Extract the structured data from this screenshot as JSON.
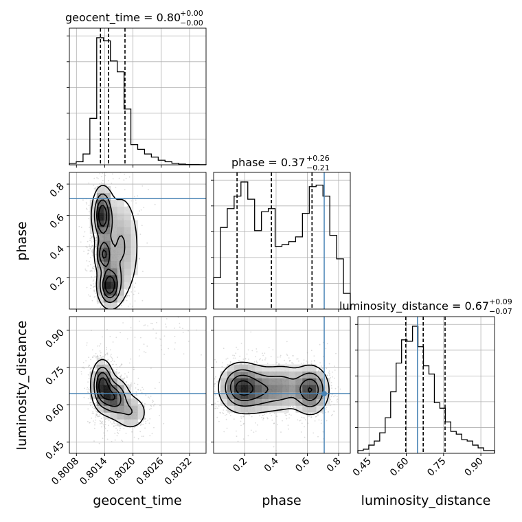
{
  "chart_data": {
    "type": "corner",
    "parameters": [
      {
        "name": "geocent_time",
        "label": "geocent_time",
        "title": "geocent_time = 0.80",
        "title_sup": "+0.00",
        "title_sub": "−0.00",
        "range": [
          0.80065,
          0.80355
        ],
        "ticks": [
          0.8008,
          0.8014,
          0.802,
          0.8026,
          0.8032
        ],
        "tick_labels": [
          "0.8008",
          "0.8014",
          "0.8020",
          "0.8026",
          "0.8032"
        ],
        "quantiles": [
          0.80131,
          0.80148,
          0.80183
        ],
        "truth": null,
        "hist_edges": [
          0.80065,
          0.80355
        ],
        "hist_counts": [
          1,
          2,
          7,
          30,
          82,
          80,
          67,
          60,
          36,
          13,
          10,
          7,
          5,
          3,
          2,
          1,
          0.5,
          0.2,
          0.2,
          0.1
        ]
      },
      {
        "name": "phase",
        "label": "phase",
        "title": "phase = 0.37",
        "title_sup": "+0.26",
        "title_sub": "−0.21",
        "range": [
          0.0,
          0.875
        ],
        "ticks": [
          0.2,
          0.4,
          0.6,
          0.8
        ],
        "tick_labels": [
          "0.2",
          "0.4",
          "0.6",
          "0.8"
        ],
        "quantiles": [
          0.15,
          0.37,
          0.63
        ],
        "truth": 0.708,
        "hist_edges": [
          0.0,
          0.875
        ],
        "hist_counts": [
          20,
          52,
          64,
          72,
          81,
          70,
          50,
          62,
          64,
          40,
          41,
          43,
          46,
          61,
          78,
          79,
          72,
          47,
          32,
          10
        ]
      },
      {
        "name": "luminosity_distance",
        "label": "luminosity_distance",
        "title": "luminosity_distance = 0.67",
        "title_sup": "+0.09",
        "title_sub": "−0.07",
        "range": [
          0.405,
          0.955
        ],
        "ticks": [
          0.45,
          0.6,
          0.75,
          0.9
        ],
        "tick_labels": [
          "0.45",
          "0.60",
          "0.75",
          "0.90"
        ],
        "quantiles": [
          0.598,
          0.668,
          0.756
        ],
        "truth": 0.645,
        "hist_edges": [
          0.405,
          0.955
        ],
        "hist_counts": [
          2,
          3,
          6,
          9,
          15,
          26,
          45,
          66,
          83,
          82,
          93,
          78,
          64,
          58,
          37,
          33,
          23,
          16,
          14,
          10,
          9,
          6,
          4,
          2,
          2
        ]
      }
    ],
    "pairs": [
      {
        "x": "geocent_time",
        "y": "phase",
        "truth_x": null,
        "truth_y": 0.708,
        "density_peaks": [
          {
            "x": 0.80135,
            "y": 0.6,
            "sx": 0.00011,
            "sy": 0.09,
            "w": 1.0
          },
          {
            "x": 0.80138,
            "y": 0.35,
            "sx": 0.0001,
            "sy": 0.06,
            "w": 0.75
          },
          {
            "x": 0.8015,
            "y": 0.15,
            "sx": 0.00013,
            "sy": 0.07,
            "w": 0.95
          },
          {
            "x": 0.80175,
            "y": 0.4,
            "sx": 0.00022,
            "sy": 0.2,
            "w": 0.35
          }
        ]
      },
      {
        "x": "geocent_time",
        "y": "luminosity_distance",
        "truth_x": null,
        "truth_y": 0.645,
        "density_peaks": [
          {
            "x": 0.80135,
            "y": 0.68,
            "sx": 0.00012,
            "sy": 0.05,
            "w": 1.0
          },
          {
            "x": 0.8016,
            "y": 0.63,
            "sx": 0.00016,
            "sy": 0.04,
            "w": 0.8
          },
          {
            "x": 0.80195,
            "y": 0.57,
            "sx": 0.0002,
            "sy": 0.04,
            "w": 0.35
          },
          {
            "x": 0.8024,
            "y": 0.88,
            "sx": 0.0004,
            "sy": 0.05,
            "w": 0.1
          }
        ]
      },
      {
        "x": "phase",
        "y": "luminosity_distance",
        "truth_x": 0.708,
        "truth_y": 0.645,
        "density_peaks": [
          {
            "x": 0.17,
            "y": 0.67,
            "sx": 0.07,
            "sy": 0.05,
            "w": 1.0
          },
          {
            "x": 0.3,
            "y": 0.66,
            "sx": 0.08,
            "sy": 0.05,
            "w": 0.6
          },
          {
            "x": 0.45,
            "y": 0.67,
            "sx": 0.07,
            "sy": 0.05,
            "w": 0.5
          },
          {
            "x": 0.62,
            "y": 0.66,
            "sx": 0.06,
            "sy": 0.05,
            "w": 1.0
          }
        ]
      }
    ],
    "grid": true,
    "colors": {
      "truth": "#4682b4",
      "hist": "#000000",
      "points": "#9a9a9a",
      "density": "#000000"
    }
  }
}
